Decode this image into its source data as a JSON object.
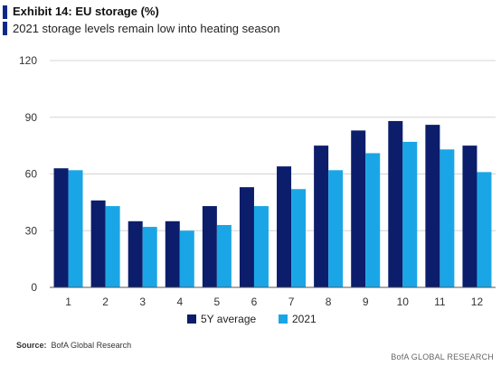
{
  "header": {
    "title": "Exhibit 14: EU storage (%)",
    "subtitle": "2021 storage levels remain low into heating season"
  },
  "footer": {
    "source_label": "Source:",
    "source_text": "BofA Global Research",
    "watermark": "BofA GLOBAL RESEARCH"
  },
  "colors": {
    "accent": "#0b2a8a",
    "series_5y": "#0b1d6b",
    "series_2021": "#1aa6e6"
  },
  "chart_data": {
    "type": "bar",
    "categories": [
      "1",
      "2",
      "3",
      "4",
      "5",
      "6",
      "7",
      "8",
      "9",
      "10",
      "11",
      "12"
    ],
    "series": [
      {
        "name": "5Y average",
        "values": [
          63,
          46,
          35,
          35,
          43,
          53,
          64,
          75,
          83,
          88,
          86,
          75
        ]
      },
      {
        "name": "2021",
        "values": [
          62,
          43,
          32,
          30,
          33,
          43,
          52,
          62,
          71,
          77,
          73,
          61
        ]
      }
    ],
    "y_ticks": [
      0,
      30,
      60,
      90,
      120
    ],
    "ylim": [
      0,
      120
    ],
    "grid": true,
    "legend_position": "bottom-center"
  }
}
